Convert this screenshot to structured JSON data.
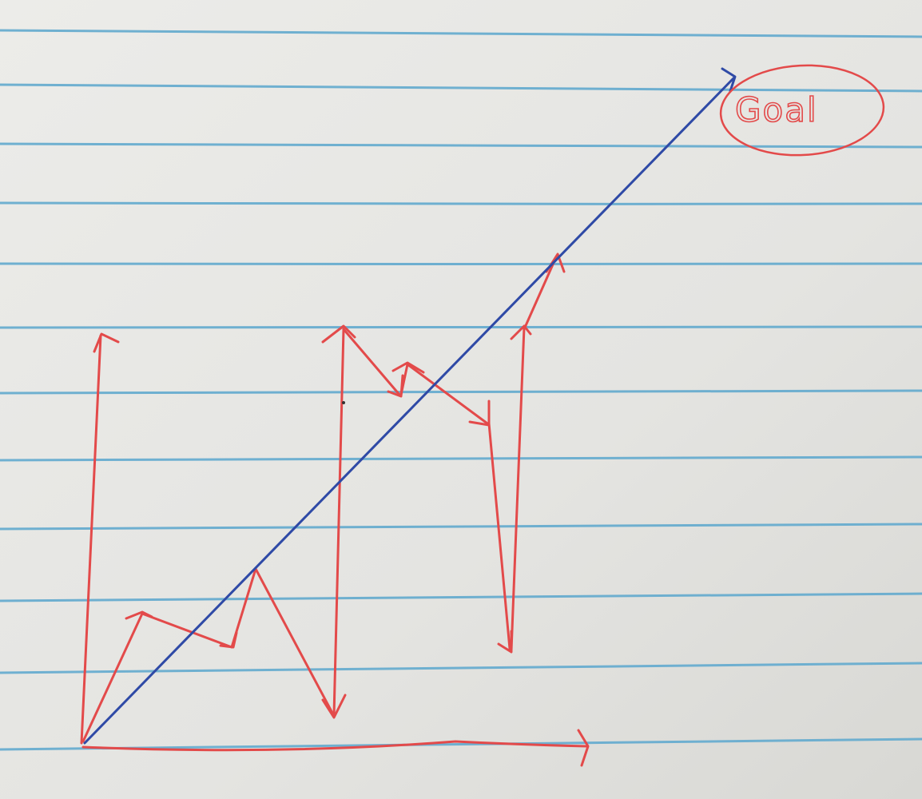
{
  "goal_label": "Goal",
  "colors": {
    "paper": "#e6e6e3",
    "rule_line": "#62aace",
    "red_ink": "#e34a4a",
    "blue_ink": "#2f4aa6"
  }
}
